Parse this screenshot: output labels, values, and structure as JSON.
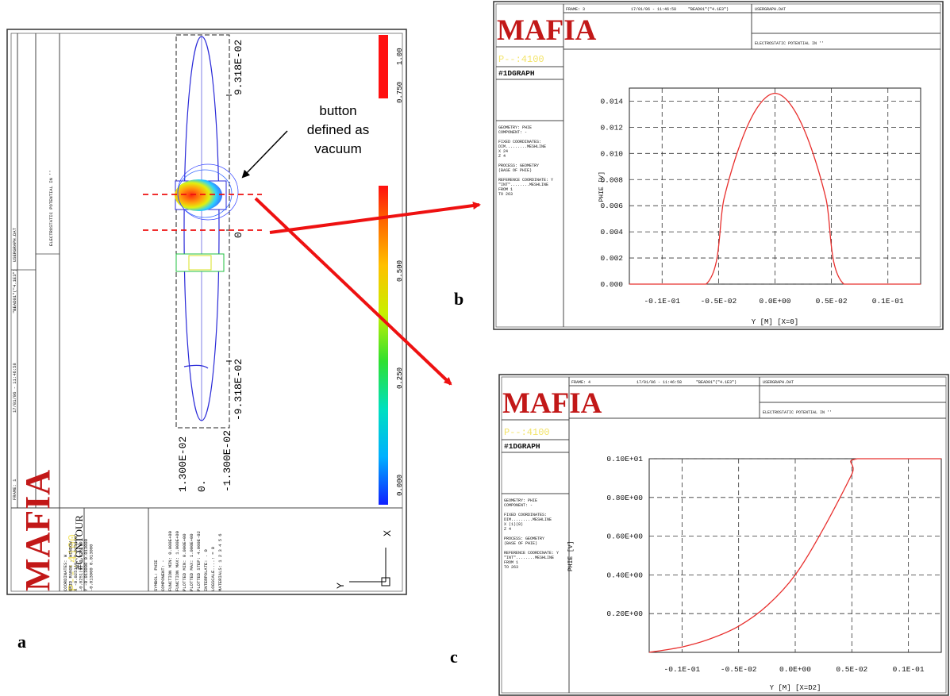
{
  "panel_a": {
    "logo": "MAFIA",
    "program": "P--:4100",
    "graph_type": "#CONTOUR",
    "frame": "FRAME:   1",
    "date": "17/01/06 - 11:46:58",
    "file": "\"BEAD01\"(\"4.1E3\")",
    "file2": "USERGRAPH.DAT",
    "quantity": "ELECTROSTATIC POTENTIAL IN ''",
    "info_lines": [
      "COORDINATES: W",
      "GRID RANGE - WINDOW",
      "X -0.0251(9, 0.0251(9)",
      "  -0.0251(9, 0.0251(9)",
      "Y -0.013000  0.013000",
      "  -0.013000  0.013000"
    ],
    "settings_lines": [
      "SYMBOL: PHIE",
      "COMPONENT: -",
      "FUNCTION MIN: 0.000E+00",
      "FUNCTION MAX: 1.000E+00",
      "PLOTTED MIN: 0.000E+00",
      "PLOTTED MAX: 1.000E+00",
      "PLOTTED STEP: 4.000E-02",
      "INTERPOLATE: .  0",
      "LOGSCALE....: =  0",
      "MATERIALS: 1 2 3 4 5 6"
    ],
    "x_ticks": [
      "1.300E-02",
      "0.",
      "-1.300E-02"
    ],
    "y_ticks": [
      "9.318E-02",
      "0",
      "-9.318E-02"
    ],
    "colorbar_ticks": [
      "1.00",
      "0.750",
      "0.500",
      "0.250",
      "0.000"
    ],
    "axis_x": "X",
    "axis_y": "Y",
    "letter": "a"
  },
  "annotation": {
    "line1": "button",
    "line2": "defined as",
    "line3": "vacuum"
  },
  "panel_b": {
    "logo": "MAFIA",
    "program": "P--:4100",
    "graph_type": "#1DGRAPH",
    "frame": "FRAME:   3",
    "date": "17/01/06 - 11:46:58",
    "file": "\"BEAD01\"(\"4.1E3\")",
    "file2": "USERGRAPH.DAT",
    "quantity": "ELECTROSTATIC POTENTIAL IN ''",
    "info_lines": [
      "GEOMETRY: PHIE",
      "COMPONENT: -",
      "",
      "FIXED COORDINATES:",
      "DIM.........MESHLINE",
      "  X    24",
      "  Z     4",
      "",
      "PROCESS: GEOMETRY",
      "(BASE OF PHIE)",
      "",
      "REFERENCE COORDINATE: Y",
      "\"INT\"........MESHLINE",
      "FROM       1",
      "TO        263"
    ],
    "letter": "b"
  },
  "panel_c": {
    "logo": "MAFIA",
    "program": "P--:4100",
    "graph_type": "#1DGRAPH",
    "frame": "FRAME:   4",
    "date": "17/01/06 - 11:46:58",
    "file": "\"BEAD01\"(\"4.1E3\")",
    "file2": "USERGRAPH.DAT",
    "quantity": "ELECTROSTATIC POTENTIAL IN ''",
    "info_lines": [
      "GEOMETRY: PHIE",
      "COMPONENT: -",
      "",
      "FIXED COORDINATES:",
      "DIM.........MESHLINE",
      "  X   (1)(8)",
      "  Z     4",
      "",
      "PROCESS: GEOMETRY",
      "(BASE OF PHIE)",
      "",
      "REFERENCE COORDINATE: Y",
      "\"INT\"........MESHLINE",
      "FROM       1",
      "TO        263"
    ],
    "letter": "c"
  },
  "colors": {
    "curve": "#e8302e",
    "arrow": "#ee1111",
    "program": "#f3e46a",
    "frame": "#333333"
  },
  "chart_data": [
    {
      "type": "line",
      "title": "",
      "xlabel": "Y [M] [X=0]",
      "ylabel": "PHIE [V]",
      "x_tick_labels": [
        "-0.1E-01",
        "-0.5E-02",
        "0.0E+00",
        "0.5E-02",
        "0.1E-01"
      ],
      "x_ticks": [
        -0.01,
        -0.005,
        0.0,
        0.005,
        0.01
      ],
      "y_tick_labels": [
        "0.000",
        "0.002",
        "0.004",
        "0.006",
        "0.008",
        "0.010",
        "0.012",
        "0.014"
      ],
      "y_ticks": [
        0,
        0.002,
        0.004,
        0.006,
        0.008,
        0.01,
        0.012,
        0.014
      ],
      "xlim": [
        -0.0129,
        0.0129
      ],
      "ylim": [
        0,
        0.015
      ],
      "grid": true,
      "series": [
        {
          "x": [
            -0.0129,
            -0.0061,
            -0.0045,
            -0.003,
            -0.0015,
            0.0,
            0.0015,
            0.003,
            0.0045,
            0.0061,
            0.0129
          ],
          "values": [
            0,
            0,
            0.0066,
            0.0109,
            0.0136,
            0.0146,
            0.0136,
            0.0109,
            0.0066,
            0,
            0
          ]
        }
      ]
    },
    {
      "type": "line",
      "title": "",
      "xlabel": "Y [M] [X=D2]",
      "ylabel": "PHIE [V]",
      "x_tick_labels": [
        "-0.1E-01",
        "-0.5E-02",
        "0.0E+00",
        "0.5E-02",
        "0.1E-01"
      ],
      "x_ticks": [
        -0.01,
        -0.005,
        0.0,
        0.005,
        0.01
      ],
      "y_tick_labels": [
        "0.20E+00",
        "0.40E+00",
        "0.60E+00",
        "0.80E+00",
        "0.10E+01"
      ],
      "y_ticks": [
        0.2,
        0.4,
        0.6,
        0.8,
        1.0
      ],
      "xlim": [
        -0.0129,
        0.0129
      ],
      "ylim": [
        0,
        1.0
      ],
      "grid": true,
      "series": [
        {
          "x": [
            -0.0129,
            -0.01,
            -0.0075,
            -0.005,
            -0.0025,
            0.0,
            0.0025,
            0.005,
            0.0055,
            0.0129
          ],
          "values": [
            0.0,
            0.028,
            0.07,
            0.135,
            0.24,
            0.4,
            0.64,
            0.92,
            1.0,
            1.0
          ]
        }
      ]
    }
  ]
}
